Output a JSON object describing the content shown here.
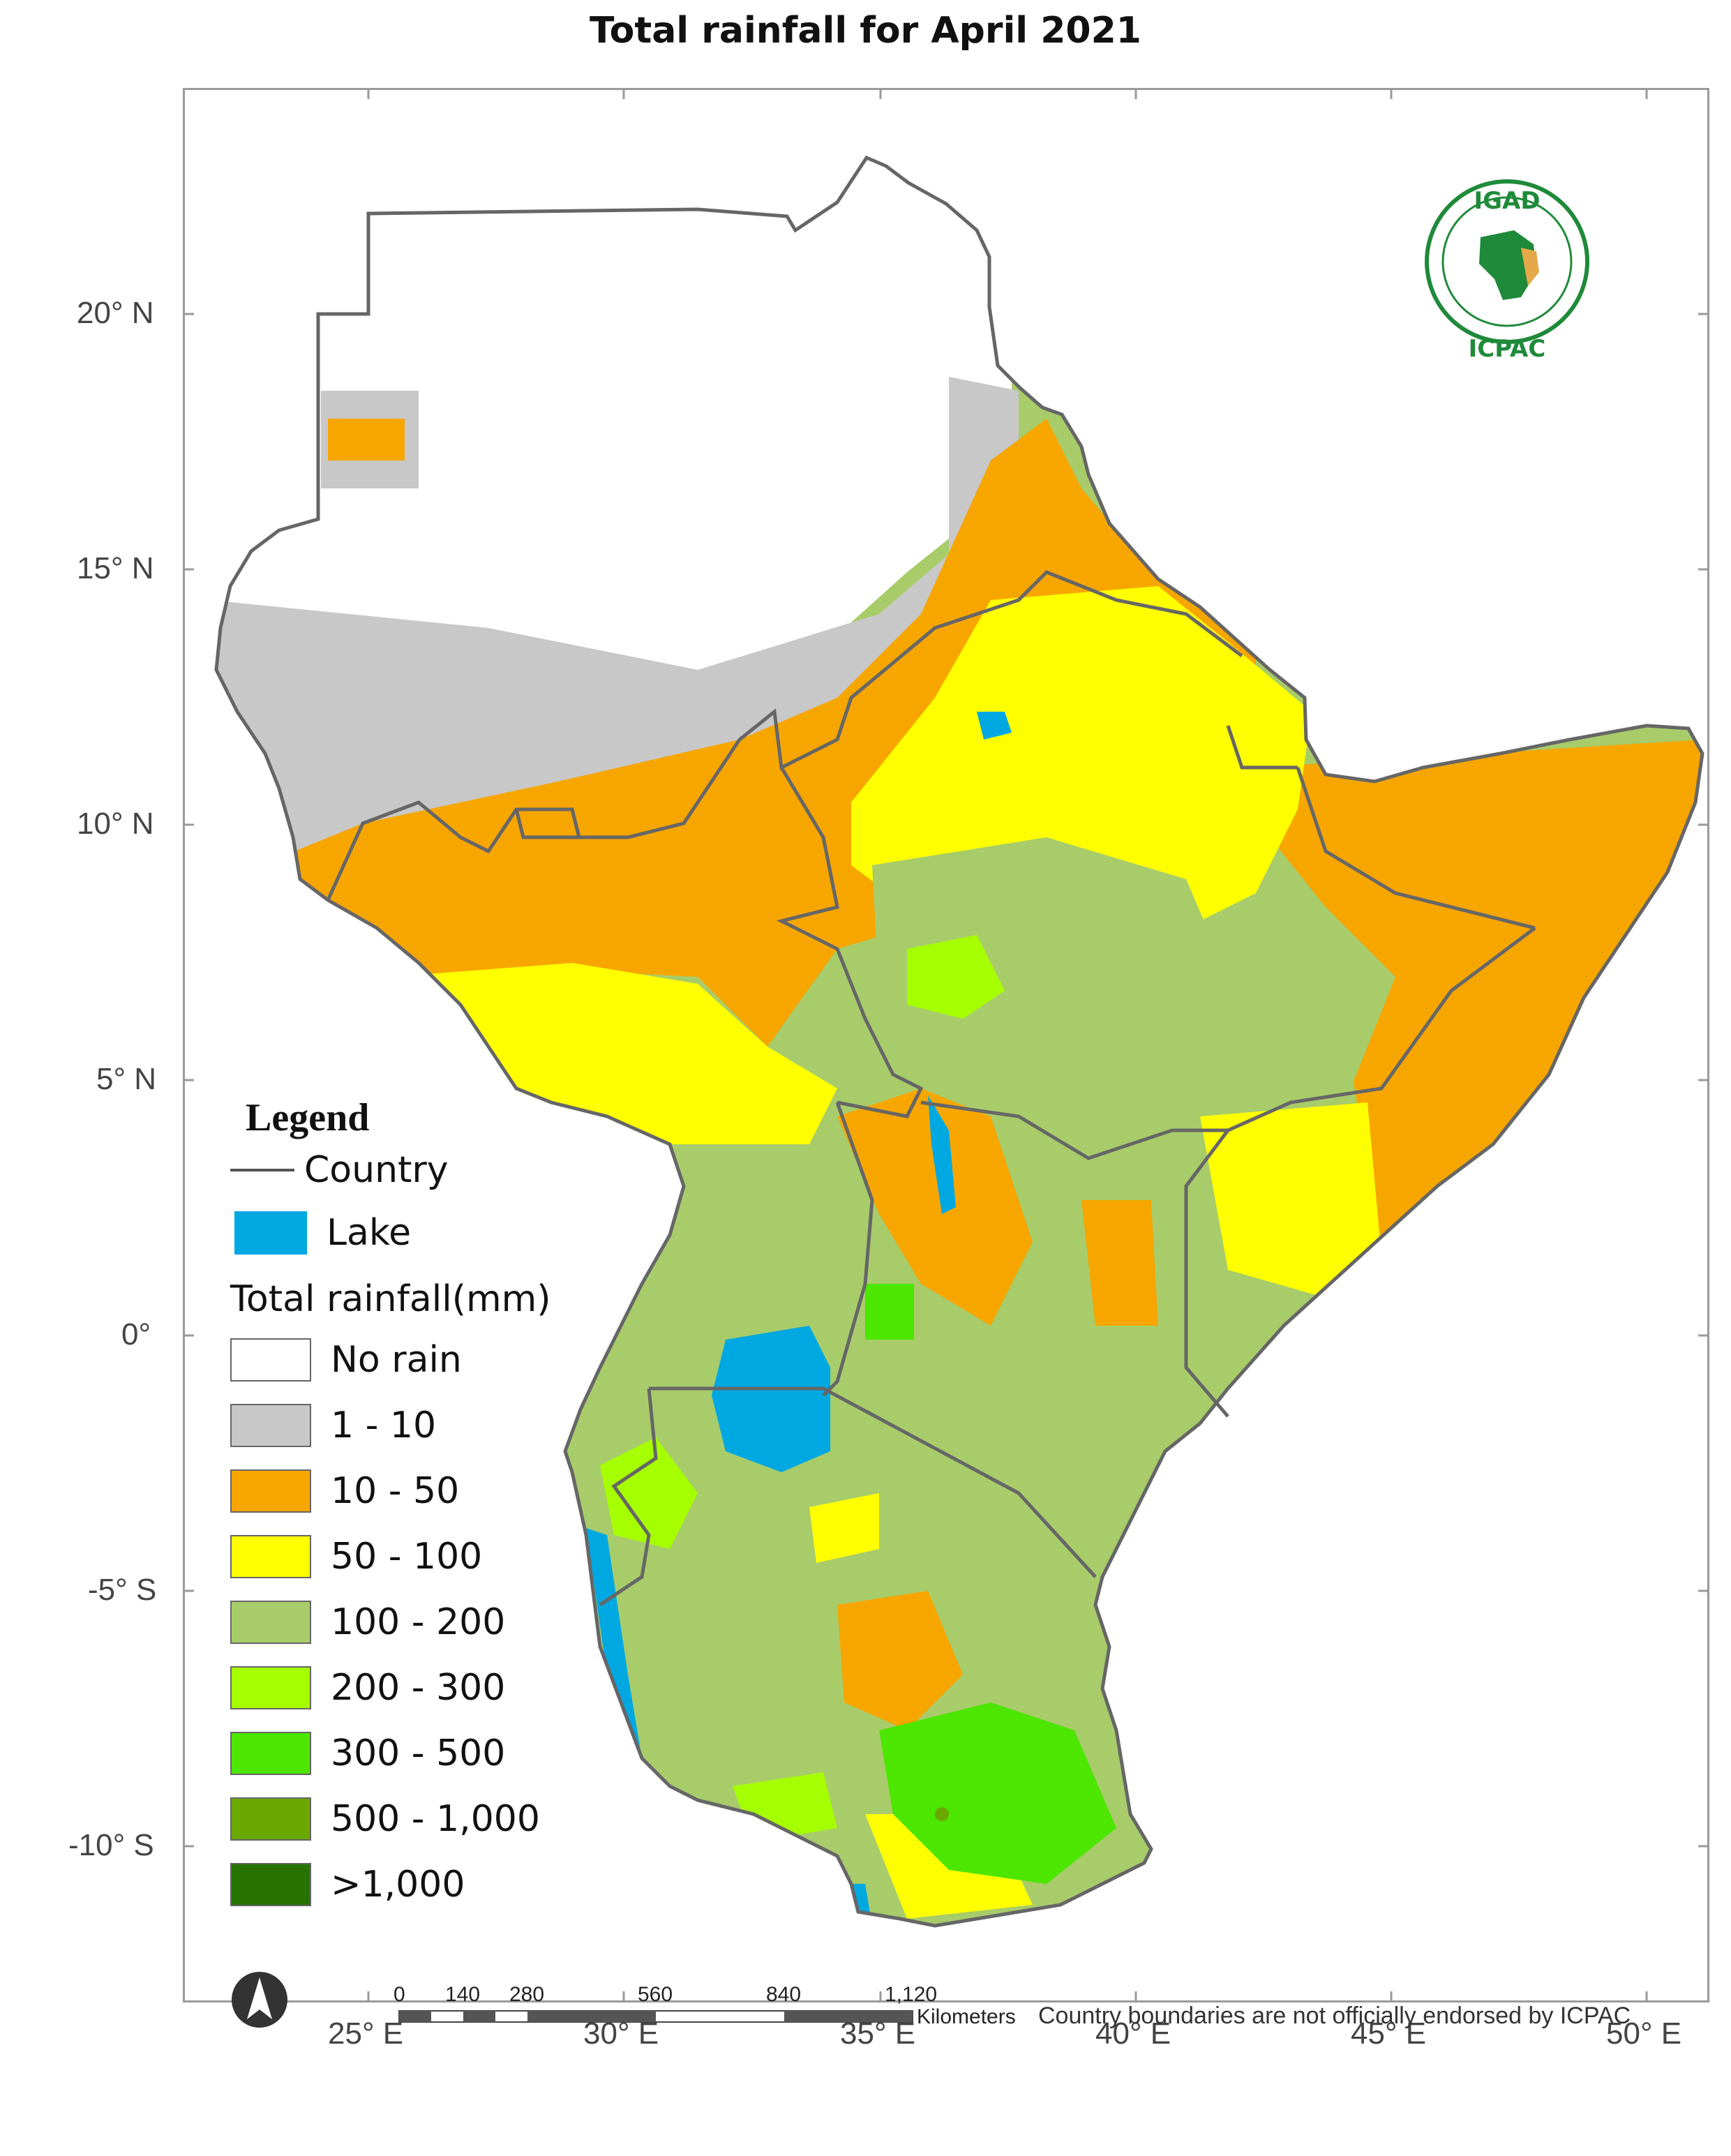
{
  "title": "Total rainfall for April 2021",
  "axes": {
    "longitude_labels": [
      "25° E",
      "30° E",
      "35° E",
      "40° E",
      "45° E",
      "50° E"
    ],
    "latitude_labels": [
      "20° N",
      "15° N",
      "10° N",
      "5° N",
      "0°",
      "-5° S",
      "-10° S"
    ]
  },
  "legend": {
    "title": "Legend",
    "country_label": "Country",
    "lake_label": "Lake",
    "rainfall_title": "Total rainfall(mm)",
    "classes": [
      {
        "label": "No rain",
        "color": "#ffffff"
      },
      {
        "label": "1 - 10",
        "color": "#c8c8c8"
      },
      {
        "label": "10 - 50",
        "color": "#f7a600"
      },
      {
        "label": "50 - 100",
        "color": "#ffff00"
      },
      {
        "label": "100 - 200",
        "color": "#a8cc6a"
      },
      {
        "label": "200 - 300",
        "color": "#a6ff00"
      },
      {
        "label": "300 - 500",
        "color": "#4ce600"
      },
      {
        "label": "500 - 1,000",
        "color": "#6aa800"
      },
      {
        "label": ">1,000",
        "color": "#267300"
      }
    ],
    "lake_color": "#00a8e2"
  },
  "scale_bar": {
    "ticks": [
      "0",
      "140",
      "280",
      "560",
      "840",
      "1,120"
    ],
    "unit": "Kilometers"
  },
  "disclaimer": "Country boundaries are not officially endorsed by ICPAC",
  "logo": {
    "top_text": "IGAD",
    "bottom_text": "ICPAC"
  },
  "north_arrow_icon": "north-arrow-icon"
}
